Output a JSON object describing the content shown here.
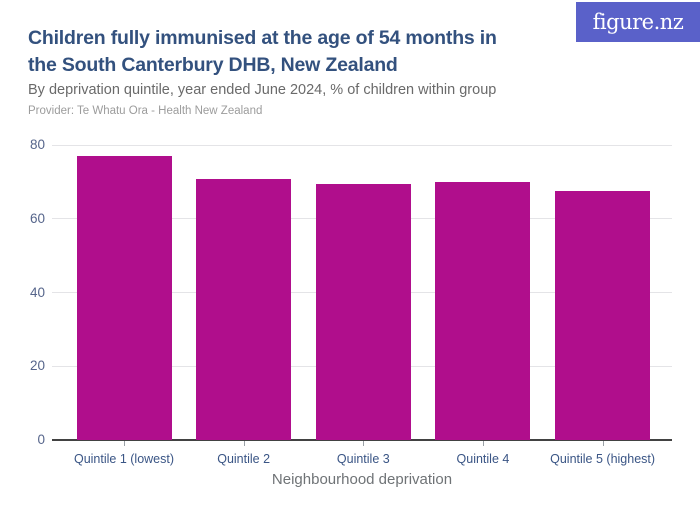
{
  "header": {
    "title_line1": "Children fully immunised at the age of 54 months in",
    "title_line2": "the South Canterbury DHB, New Zealand",
    "subtitle": "By deprivation quintile, year ended June 2024, % of children within group",
    "provider": "Provider: Te Whatu Ora - Health New Zealand"
  },
  "logo": {
    "text": "figure.nz"
  },
  "chart_data": {
    "type": "bar",
    "title": "Children fully immunised at the age of 54 months in the South Canterbury DHB, New Zealand",
    "subtitle": "By deprivation quintile, year ended June 2024, % of children within group",
    "categories": [
      "Quintile 1 (lowest)",
      "Quintile 2",
      "Quintile 3",
      "Quintile 4",
      "Quintile 5 (highest)"
    ],
    "values": [
      76.9,
      70.7,
      69.5,
      69.9,
      67.6
    ],
    "xlabel": "Neighbourhood deprivation",
    "ylabel": "",
    "ylim": [
      0,
      80
    ],
    "yticks": [
      0,
      20,
      40,
      60,
      80
    ],
    "grid": true,
    "legend": false
  },
  "colors": {
    "bar": "#B00E8C",
    "title": "#33517E",
    "subtitle": "#6A6A6A",
    "provider": "#9C9C9C",
    "y_tick_label": "#56658B",
    "x_tick_label": "#3A5585",
    "axis_title": "#6F7376",
    "gridline": "#E4E4E7",
    "axis_line": "#424242",
    "tick": "#9AA0A6",
    "logo_background": "#5A61C9",
    "logo_text": "#FFFFFF"
  }
}
